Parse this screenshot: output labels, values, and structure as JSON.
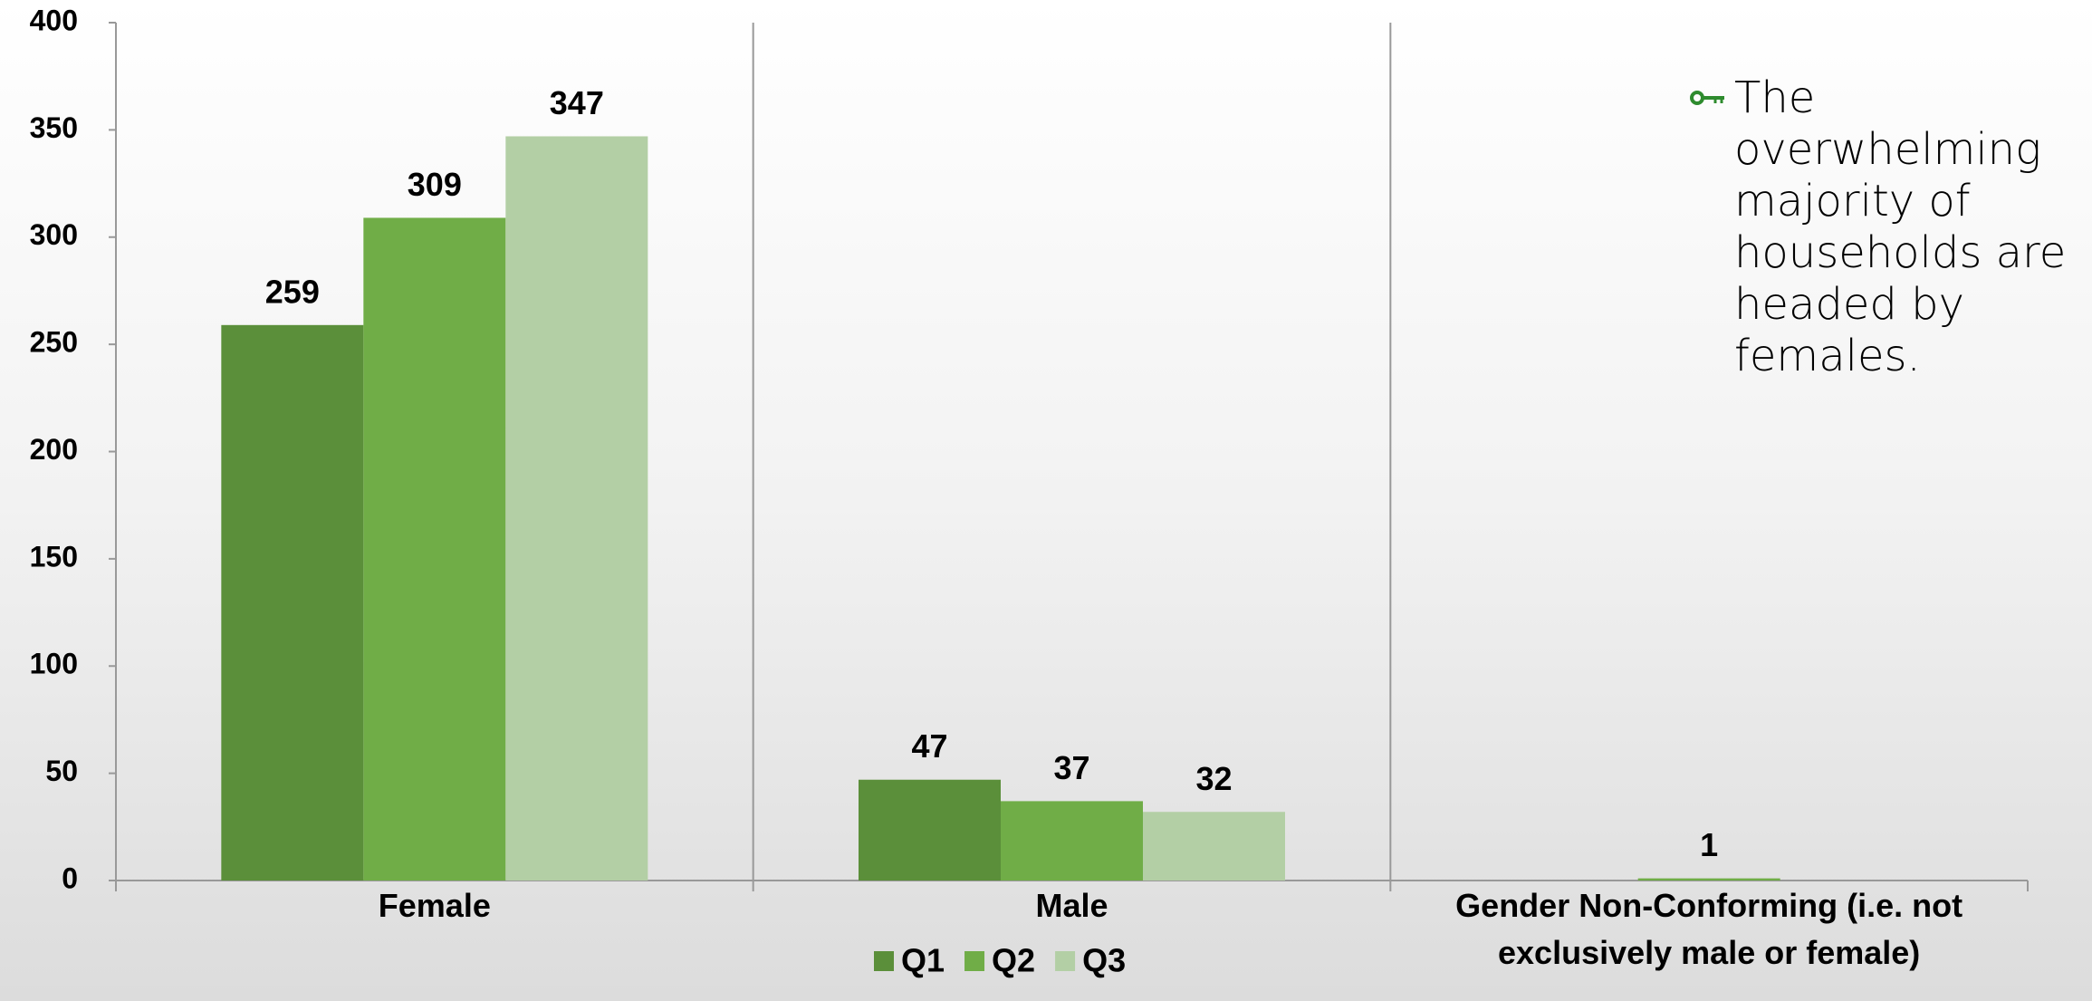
{
  "chart_data": {
    "type": "bar",
    "categories": [
      "Female",
      "Male",
      "Gender Non-Conforming (i.e. not exclusively male or female)"
    ],
    "series": [
      {
        "name": "Q1",
        "color": "#5b8f3a",
        "values": [
          259,
          47,
          null
        ]
      },
      {
        "name": "Q2",
        "color": "#70ad47",
        "values": [
          309,
          37,
          1
        ]
      },
      {
        "name": "Q3",
        "color": "#b3cfa5",
        "values": [
          347,
          32,
          null
        ]
      }
    ],
    "ylim": [
      0,
      400
    ],
    "yticks": [
      0,
      50,
      100,
      150,
      200,
      250,
      300,
      350,
      400
    ],
    "grid": false,
    "legend": "bottom",
    "annotation": "The overwhelming majority of households are headed by females."
  }
}
